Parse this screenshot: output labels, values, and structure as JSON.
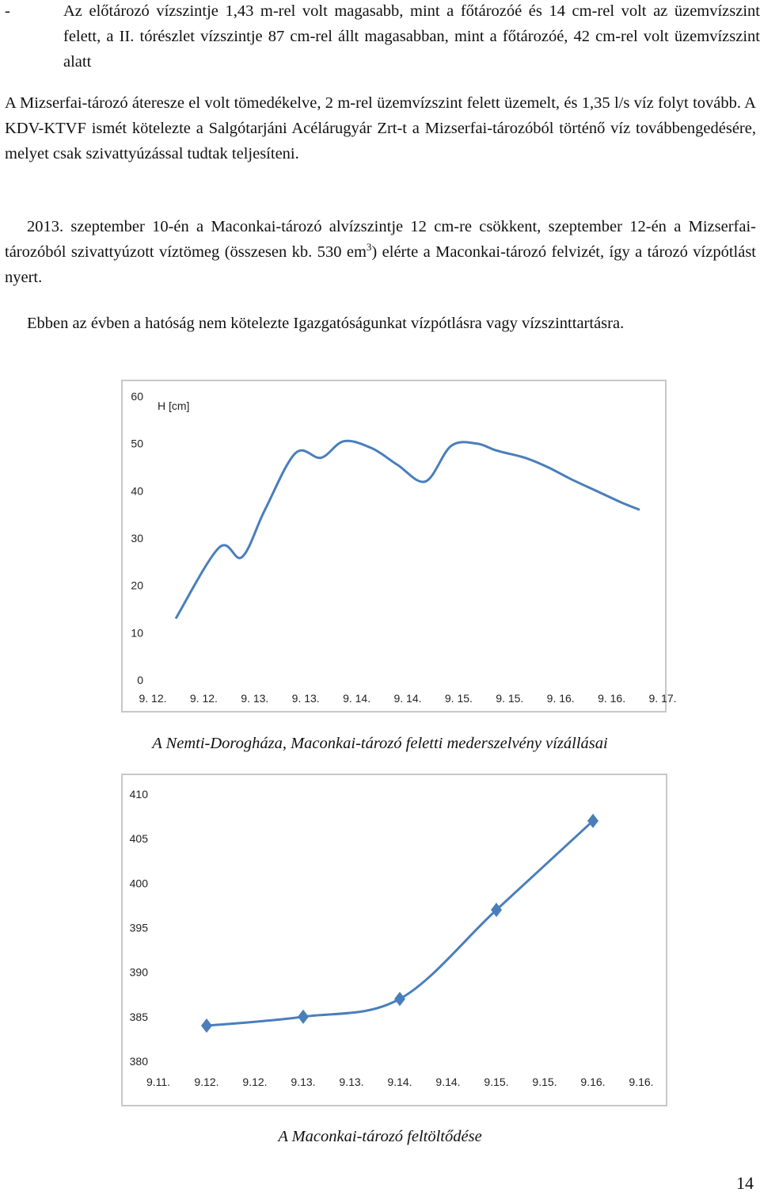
{
  "bullet": {
    "dash": "-",
    "text": "Az előtározó vízszintje 1,43 m-rel volt magasabb, mint a főtározóé és 14 cm-rel volt az üzemvízszint felett, a II. tórészlet vízszintje 87 cm-rel állt magasabban, mint a főtározóé, 42 cm-rel volt üzemvízszint alatt"
  },
  "paragraphs": {
    "p1": "A Mizserfai-tározó áteresze el volt tömedékelve, 2 m-rel üzemvízszint felett üzemelt, és 1,35 l/s víz folyt tovább. A KDV-KTVF ismét kötelezte a Salgótarjáni Acélárugyár Zrt-t a Mizserfai-tározóból történő víz továbbengedésére, melyet csak szivattyúzással tudtak teljesíteni.",
    "p2_before": "2013. szeptember 10-én a Maconkai-tározó alvízszintje 12 cm-re csökkent, szeptember 12-én a Mizserfai-tározóból szivattyúzott víztömeg (összesen kb. 530 em",
    "p2_sup": "3",
    "p2_after": ") elérte a Maconkai-tározó felvizét, így a tározó vízpótlást nyert.",
    "p3": "Ebben az évben a hatóság nem kötelezte Igazgatóságunkat vízpótlásra vagy vízszinttartásra."
  },
  "chart_data": [
    {
      "type": "line",
      "title": "",
      "ylabel": "H [cm]",
      "xlabel": "",
      "ylim": [
        0,
        60
      ],
      "yticks": [
        "60",
        "50",
        "40",
        "30",
        "20",
        "10",
        "0"
      ],
      "xticks": [
        "9. 12.",
        "9. 12.",
        "9. 13.",
        "9. 13.",
        "9. 14.",
        "9. 14.",
        "9. 15.",
        "9. 15.",
        "9. 16.",
        "9. 16.",
        "9. 17."
      ],
      "x": [
        0.45,
        1.3,
        1.75,
        2.2,
        2.8,
        3.3,
        3.75,
        4.3,
        4.8,
        5.35,
        5.85,
        6.35,
        6.75,
        7.3,
        7.75,
        8.2,
        8.7,
        9.2,
        9.55
      ],
      "values": [
        13,
        28,
        26,
        36,
        48,
        47,
        50.5,
        49,
        45.5,
        42,
        49.5,
        50,
        48.5,
        47,
        45,
        42.5,
        40,
        37.5,
        36
      ],
      "color": "#4a7ebb",
      "grid": false,
      "legend": "none"
    },
    {
      "type": "line",
      "title": "",
      "ylabel": "",
      "xlabel": "",
      "ylim": [
        380,
        410
      ],
      "yticks": [
        "410",
        "405",
        "400",
        "395",
        "390",
        "385",
        "380"
      ],
      "xticks": [
        "9.11.",
        "9.12.",
        "9.12.",
        "9.13.",
        "9.13.",
        "9.14.",
        "9.14.",
        "9.15.",
        "9.15.",
        "9.16.",
        "9.16."
      ],
      "x": [
        1,
        3,
        5,
        7,
        9
      ],
      "values": [
        384,
        385,
        387,
        397,
        407
      ],
      "color": "#4a7ebb",
      "markers": "diamond",
      "grid": false,
      "legend": "none"
    }
  ],
  "captions": {
    "chart1": "A Nemti-Dorogháza, Maconkai-tározó feletti mederszelvény vízállásai",
    "chart2": "A Maconkai-tározó feltöltődése"
  },
  "page_number": "14"
}
